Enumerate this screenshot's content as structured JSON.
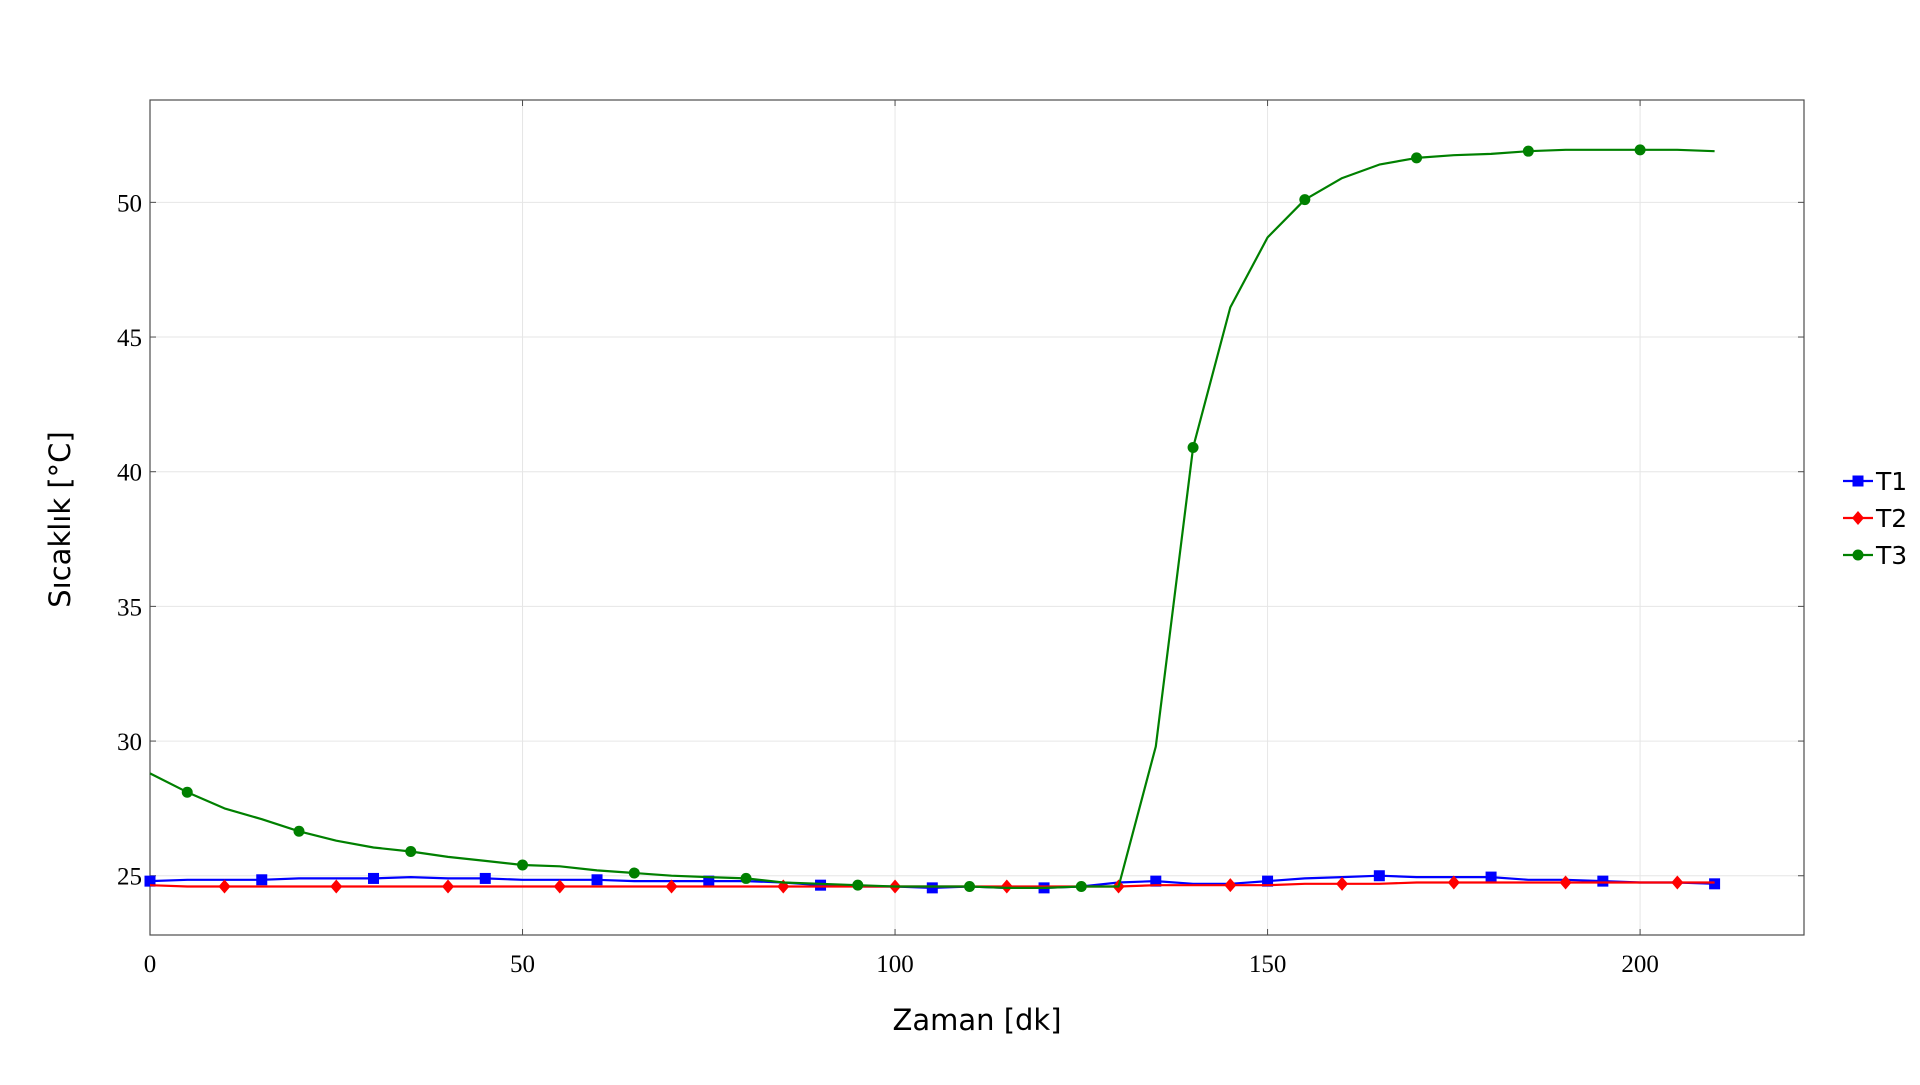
{
  "chart_data": {
    "type": "line",
    "xlabel": "Zaman [dk]",
    "ylabel": "Sıcaklık [°C]",
    "xlim": [
      0,
      222
    ],
    "ylim": [
      22.8,
      53.8
    ],
    "xticks": [
      0,
      50,
      100,
      150,
      200
    ],
    "xtick_labels": [
      "0",
      "50",
      "100",
      "150",
      "200"
    ],
    "yticks": [
      25,
      30,
      35,
      40,
      45,
      50
    ],
    "ytick_labels": [
      "25",
      "30",
      "35",
      "40",
      "45",
      "50"
    ],
    "grid": true,
    "legend_position": "right",
    "x": [
      0,
      5,
      10,
      15,
      20,
      25,
      30,
      35,
      40,
      45,
      50,
      55,
      60,
      65,
      70,
      75,
      80,
      85,
      90,
      95,
      100,
      105,
      110,
      115,
      120,
      125,
      130,
      135,
      140,
      145,
      150,
      155,
      160,
      165,
      170,
      175,
      180,
      185,
      190,
      195,
      200,
      205,
      210
    ],
    "series": [
      {
        "name": "T1",
        "color": "#0000ff",
        "marker": "square",
        "values": [
          24.8,
          24.85,
          24.85,
          24.85,
          24.9,
          24.9,
          24.9,
          24.95,
          24.9,
          24.9,
          24.85,
          24.85,
          24.85,
          24.8,
          24.8,
          24.8,
          24.8,
          24.75,
          24.65,
          24.6,
          24.6,
          24.55,
          24.6,
          24.55,
          24.55,
          24.6,
          24.75,
          24.8,
          24.7,
          24.7,
          24.8,
          24.9,
          24.95,
          25.0,
          24.95,
          24.95,
          24.95,
          24.85,
          24.85,
          24.8,
          24.75,
          24.75,
          24.7
        ]
      },
      {
        "name": "T2",
        "color": "#ff0000",
        "marker": "diamond",
        "values": [
          24.65,
          24.6,
          24.6,
          24.6,
          24.6,
          24.6,
          24.6,
          24.6,
          24.6,
          24.6,
          24.6,
          24.6,
          24.6,
          24.6,
          24.6,
          24.6,
          24.6,
          24.6,
          24.6,
          24.6,
          24.6,
          24.6,
          24.6,
          24.6,
          24.6,
          24.6,
          24.6,
          24.65,
          24.65,
          24.65,
          24.65,
          24.7,
          24.7,
          24.7,
          24.75,
          24.75,
          24.75,
          24.75,
          24.75,
          24.75,
          24.75,
          24.75,
          24.75
        ]
      },
      {
        "name": "T3",
        "color": "#008000",
        "marker": "circle",
        "values": [
          28.8,
          28.1,
          27.5,
          27.1,
          26.65,
          26.3,
          26.05,
          25.9,
          25.7,
          25.55,
          25.4,
          25.35,
          25.2,
          25.1,
          25.0,
          24.95,
          24.9,
          24.75,
          24.7,
          24.65,
          24.6,
          24.6,
          24.6,
          24.55,
          24.55,
          24.6,
          24.6,
          29.8,
          40.9,
          46.1,
          48.7,
          50.1,
          50.9,
          51.4,
          51.65,
          51.75,
          51.8,
          51.9,
          51.95,
          51.95,
          51.95,
          51.95,
          51.9
        ]
      }
    ]
  }
}
